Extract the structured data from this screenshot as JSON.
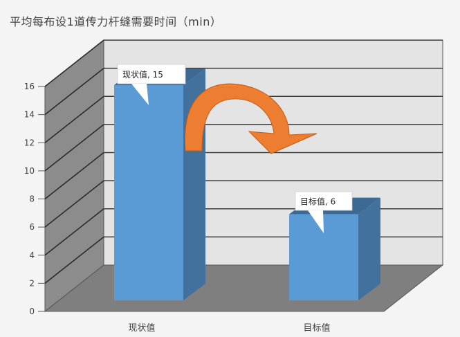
{
  "chart_data": {
    "type": "bar",
    "title": "平均每布设1道传力杆缝需要时间（min）",
    "categories": [
      "现状值",
      "目标值"
    ],
    "values": [
      15,
      6
    ],
    "data_labels": [
      "现状值, 15",
      "目标值, 6"
    ],
    "ylim": [
      0,
      16
    ],
    "yticks": [
      "0",
      "2",
      "4",
      "6",
      "8",
      "10",
      "12",
      "14",
      "16"
    ],
    "grid": true,
    "three_d": true,
    "colors": {
      "bar_front": "#5b9bd5",
      "bar_side": "#41719c",
      "bar_top": "#3d6a94",
      "back_wall": "#e4e4e4",
      "side_wall": "#8c8c8c",
      "floor": "#7f7f7f",
      "arrow": "#ed7d31"
    }
  }
}
